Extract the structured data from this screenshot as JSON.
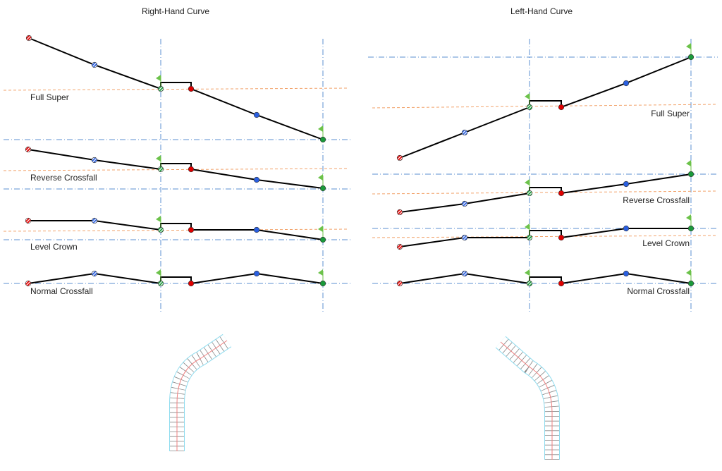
{
  "panels": [
    {
      "title": "Right-Hand Curve",
      "side": "right",
      "cases": [
        {
          "label": "Full Super"
        },
        {
          "label": "Reverse Crossfall"
        },
        {
          "label": "Level Crown"
        },
        {
          "label": "Normal Crossfall"
        }
      ]
    },
    {
      "title": "Left-Hand Curve",
      "side": "left",
      "cases": [
        {
          "label": "Full Super"
        },
        {
          "label": "Reverse Crossfall"
        },
        {
          "label": "Level Crown"
        },
        {
          "label": "Normal Crossfall"
        }
      ]
    }
  ],
  "colors": {
    "profile_line": "#000000",
    "axis_dashdot": "#5b8fd0",
    "reference_dashed": "#f2a26a",
    "point_red": "#e00000",
    "point_blue": "#2a5fe0",
    "point_green": "#1a9a3a",
    "flag": "#6cc24a",
    "road_edge": "#8fdcef",
    "road_centerline": "#f08080"
  },
  "icons": {
    "point": "circle-marker",
    "hatched_point": "hatched-circle-marker",
    "flag": "flag-icon"
  }
}
